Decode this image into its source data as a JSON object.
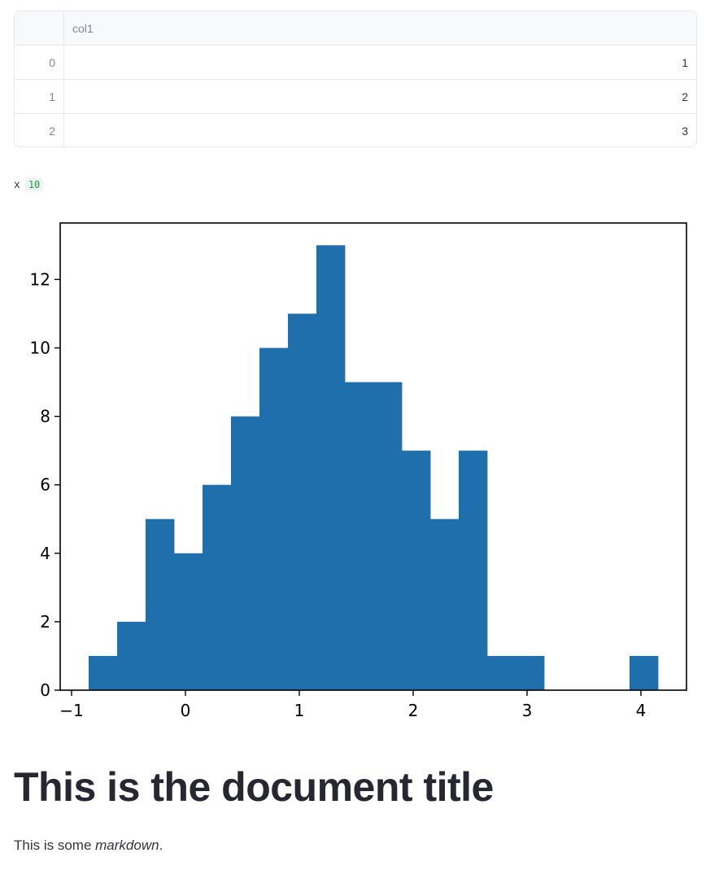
{
  "dataframe": {
    "columns": [
      "col1"
    ],
    "rows": [
      {
        "index": "0",
        "col1": "1"
      },
      {
        "index": "1",
        "col1": "2"
      },
      {
        "index": "2",
        "col1": "3"
      }
    ]
  },
  "code_var": {
    "name": "x",
    "value": "10"
  },
  "chart_data": {
    "type": "bar",
    "subtype": "histogram",
    "color": "#1f6fad",
    "bins": [
      {
        "x0": -0.85,
        "x1": -0.6,
        "count": 1
      },
      {
        "x0": -0.6,
        "x1": -0.35,
        "count": 2
      },
      {
        "x0": -0.35,
        "x1": -0.1,
        "count": 5
      },
      {
        "x0": -0.1,
        "x1": 0.15,
        "count": 4
      },
      {
        "x0": 0.15,
        "x1": 0.4,
        "count": 6
      },
      {
        "x0": 0.4,
        "x1": 0.65,
        "count": 8
      },
      {
        "x0": 0.65,
        "x1": 0.9,
        "count": 10
      },
      {
        "x0": 0.9,
        "x1": 1.15,
        "count": 11
      },
      {
        "x0": 1.15,
        "x1": 1.4,
        "count": 13
      },
      {
        "x0": 1.4,
        "x1": 1.65,
        "count": 9
      },
      {
        "x0": 1.65,
        "x1": 1.9,
        "count": 9
      },
      {
        "x0": 1.9,
        "x1": 2.15,
        "count": 7
      },
      {
        "x0": 2.15,
        "x1": 2.4,
        "count": 5
      },
      {
        "x0": 2.4,
        "x1": 2.65,
        "count": 7
      },
      {
        "x0": 2.65,
        "x1": 2.9,
        "count": 1
      },
      {
        "x0": 2.9,
        "x1": 3.15,
        "count": 1
      },
      {
        "x0": 3.15,
        "x1": 3.4,
        "count": 0
      },
      {
        "x0": 3.4,
        "x1": 3.65,
        "count": 0
      },
      {
        "x0": 3.65,
        "x1": 3.9,
        "count": 0
      },
      {
        "x0": 3.9,
        "x1": 4.15,
        "count": 1
      }
    ],
    "xlim": [
      -1.1,
      4.4
    ],
    "ylim": [
      0,
      13.65
    ],
    "xticks": [
      -1,
      0,
      1,
      2,
      3,
      4
    ],
    "xtick_labels": [
      "−1",
      "0",
      "1",
      "2",
      "3",
      "4"
    ],
    "yticks": [
      0,
      2,
      4,
      6,
      8,
      10,
      12
    ],
    "ytick_labels": [
      "0",
      "2",
      "4",
      "6",
      "8",
      "10",
      "12"
    ],
    "title": "",
    "xlabel": "",
    "ylabel": "",
    "grid": false
  },
  "document": {
    "title": "This is the document title",
    "para_prefix": "This is some ",
    "para_emphasis": "markdown",
    "para_suffix": "."
  }
}
